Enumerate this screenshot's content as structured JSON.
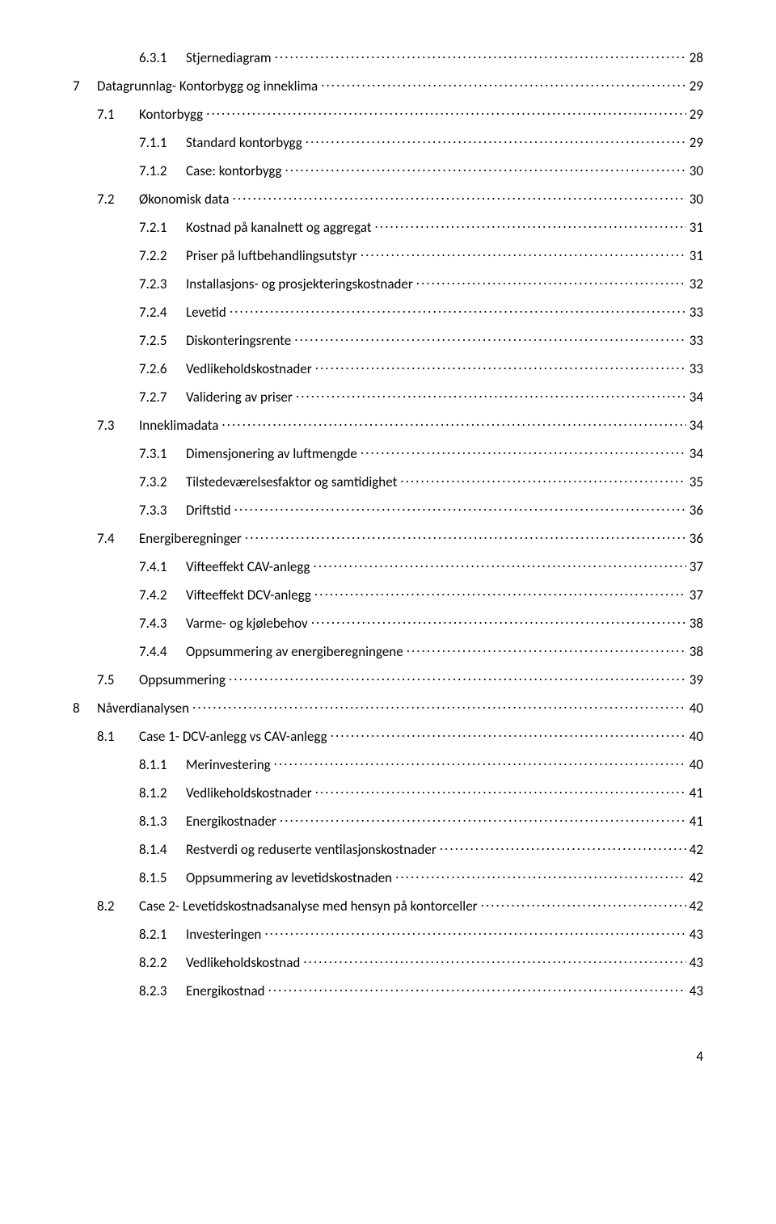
{
  "toc": [
    {
      "level": 3,
      "num": "6.3.1",
      "title": "Stjernediagram",
      "page": "28"
    },
    {
      "level": 1,
      "num": "7",
      "title": "Datagrunnlag- Kontorbygg og inneklima",
      "page": "29"
    },
    {
      "level": 2,
      "num": "7.1",
      "title": "Kontorbygg",
      "page": "29"
    },
    {
      "level": 3,
      "num": "7.1.1",
      "title": "Standard kontorbygg",
      "page": "29"
    },
    {
      "level": 3,
      "num": "7.1.2",
      "title": "Case: kontorbygg",
      "page": "30"
    },
    {
      "level": 2,
      "num": "7.2",
      "title": "Økonomisk data",
      "page": "30"
    },
    {
      "level": 3,
      "num": "7.2.1",
      "title": "Kostnad på kanalnett og aggregat",
      "page": "31"
    },
    {
      "level": 3,
      "num": "7.2.2",
      "title": "Priser på luftbehandlingsutstyr",
      "page": "31"
    },
    {
      "level": 3,
      "num": "7.2.3",
      "title": "Installasjons- og prosjekteringskostnader",
      "page": "32"
    },
    {
      "level": 3,
      "num": "7.2.4",
      "title": "Levetid",
      "page": "33"
    },
    {
      "level": 3,
      "num": "7.2.5",
      "title": "Diskonteringsrente",
      "page": "33"
    },
    {
      "level": 3,
      "num": "7.2.6",
      "title": "Vedlikeholdskostnader",
      "page": "33"
    },
    {
      "level": 3,
      "num": "7.2.7",
      "title": "Validering av priser",
      "page": "34"
    },
    {
      "level": 2,
      "num": "7.3",
      "title": "Inneklimadata",
      "page": "34"
    },
    {
      "level": 3,
      "num": "7.3.1",
      "title": "Dimensjonering av luftmengde",
      "page": "34"
    },
    {
      "level": 3,
      "num": "7.3.2",
      "title": "Tilstedeværelsesfaktor og samtidighet",
      "page": "35"
    },
    {
      "level": 3,
      "num": "7.3.3",
      "title": "Driftstid",
      "page": "36"
    },
    {
      "level": 2,
      "num": "7.4",
      "title": "Energiberegninger",
      "page": "36"
    },
    {
      "level": 3,
      "num": "7.4.1",
      "title": "Vifteeffekt CAV-anlegg",
      "page": "37"
    },
    {
      "level": 3,
      "num": "7.4.2",
      "title": "Vifteeffekt DCV-anlegg",
      "page": "37"
    },
    {
      "level": 3,
      "num": "7.4.3",
      "title": "Varme- og kjølebehov",
      "page": "38"
    },
    {
      "level": 3,
      "num": "7.4.4",
      "title": "Oppsummering av energiberegningene",
      "page": "38"
    },
    {
      "level": 2,
      "num": "7.5",
      "title": "Oppsummering",
      "page": "39"
    },
    {
      "level": 1,
      "num": "8",
      "title": "Nåverdianalysen",
      "page": "40"
    },
    {
      "level": 2,
      "num": "8.1",
      "title": "Case 1- DCV-anlegg vs CAV-anlegg",
      "page": "40"
    },
    {
      "level": 3,
      "num": "8.1.1",
      "title": "Merinvestering",
      "page": "40"
    },
    {
      "level": 3,
      "num": "8.1.2",
      "title": "Vedlikeholdskostnader",
      "page": "41"
    },
    {
      "level": 3,
      "num": "8.1.3",
      "title": "Energikostnader",
      "page": "41"
    },
    {
      "level": 3,
      "num": "8.1.4",
      "title": "Restverdi og reduserte ventilasjonskostnader",
      "page": "42"
    },
    {
      "level": 3,
      "num": "8.1.5",
      "title": "Oppsummering av levetidskostnaden",
      "page": "42"
    },
    {
      "level": 2,
      "num": "8.2",
      "title": "Case 2- Levetidskostnadsanalyse med hensyn på kontorceller",
      "page": "42"
    },
    {
      "level": 3,
      "num": "8.2.1",
      "title": "Investeringen",
      "page": "43"
    },
    {
      "level": 3,
      "num": "8.2.2",
      "title": "Vedlikeholdskostnad",
      "page": "43"
    },
    {
      "level": 3,
      "num": "8.2.3",
      "title": "Energikostnad",
      "page": "43"
    }
  ],
  "pageNumber": "4"
}
